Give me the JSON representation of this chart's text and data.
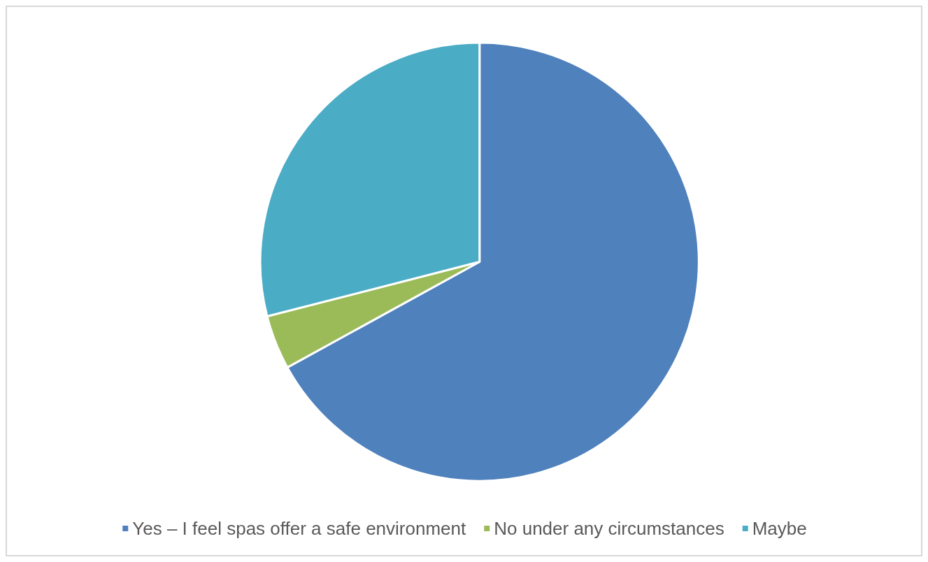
{
  "chart_data": {
    "type": "pie",
    "categories": [
      "Yes – I feel spas offer a safe environment",
      "No under any circumstances",
      "Maybe"
    ],
    "values": [
      67,
      4,
      29
    ],
    "colors": [
      "#4f81bd",
      "#9bbb59",
      "#4bacc6"
    ],
    "legend": "bottom"
  }
}
